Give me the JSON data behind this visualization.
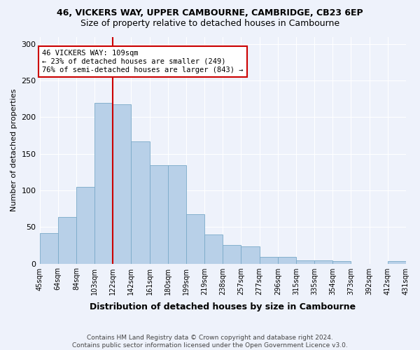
{
  "title1": "46, VICKERS WAY, UPPER CAMBOURNE, CAMBRIDGE, CB23 6EP",
  "title2": "Size of property relative to detached houses in Cambourne",
  "xlabel": "Distribution of detached houses by size in Cambourne",
  "ylabel": "Number of detached properties",
  "footer": "Contains HM Land Registry data © Crown copyright and database right 2024.\nContains public sector information licensed under the Open Government Licence v3.0.",
  "bin_labels": [
    "45sqm",
    "64sqm",
    "84sqm",
    "103sqm",
    "122sqm",
    "142sqm",
    "161sqm",
    "180sqm",
    "199sqm",
    "219sqm",
    "238sqm",
    "257sqm",
    "277sqm",
    "296sqm",
    "315sqm",
    "335sqm",
    "354sqm",
    "373sqm",
    "392sqm",
    "412sqm",
    "431sqm"
  ],
  "bar_values": [
    42,
    64,
    105,
    220,
    218,
    167,
    134,
    134,
    67,
    40,
    25,
    23,
    9,
    9,
    4,
    4,
    3,
    0,
    0,
    3
  ],
  "bar_color": "#b8d0e8",
  "bar_edge_color": "#7aaac8",
  "vline_index": 3,
  "vline_color": "#cc0000",
  "annotation_text": "46 VICKERS WAY: 109sqm\n← 23% of detached houses are smaller (249)\n76% of semi-detached houses are larger (843) →",
  "annotation_box_color": "#ffffff",
  "annotation_box_edge": "#cc0000",
  "ylim": [
    0,
    310
  ],
  "yticks": [
    0,
    50,
    100,
    150,
    200,
    250,
    300
  ],
  "background_color": "#eef2fb",
  "grid_color": "#ffffff"
}
